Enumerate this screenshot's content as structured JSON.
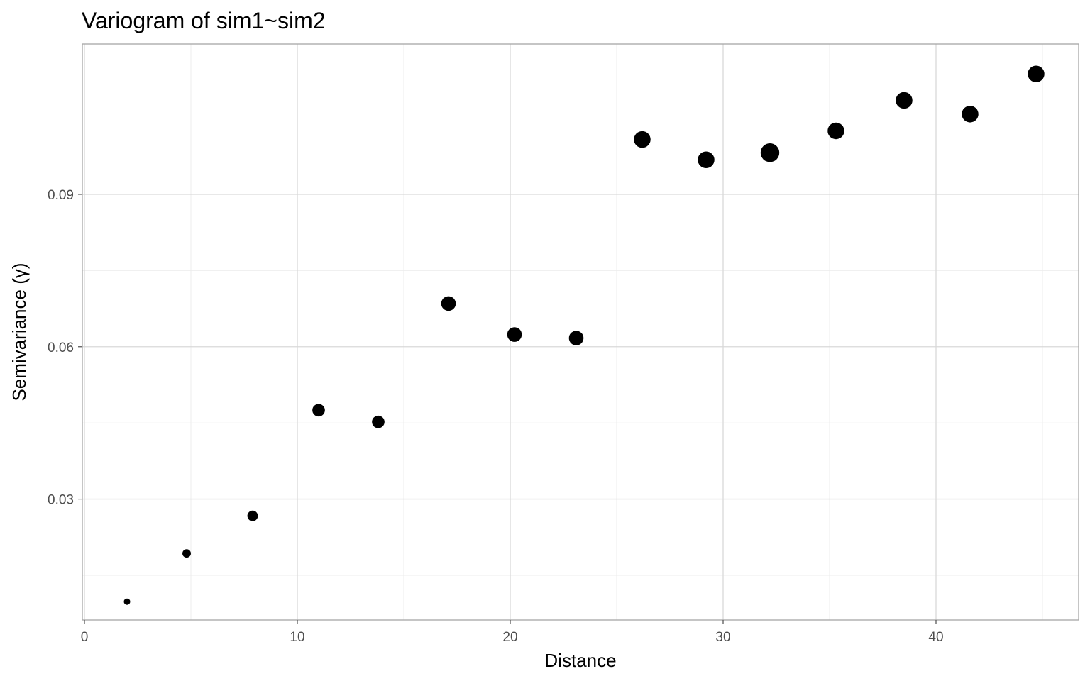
{
  "chart_data": {
    "type": "scatter",
    "title": "Variogram of sim1~sim2",
    "xlabel": "Distance",
    "ylabel": "Semivariance (γ)",
    "xlim": [
      -0.1,
      46.7
    ],
    "ylim": [
      0.0062,
      0.1196
    ],
    "x_ticks": [
      0,
      10,
      20,
      30,
      40
    ],
    "x_tick_labels": [
      "0",
      "10",
      "20",
      "30",
      "40"
    ],
    "y_ticks": [
      0.03,
      0.06,
      0.09
    ],
    "y_tick_labels": [
      "0.03",
      "0.06",
      "0.09"
    ],
    "grid": true,
    "legend": "none",
    "points": [
      {
        "x": 2.0,
        "y": 0.0098,
        "size": 1
      },
      {
        "x": 4.8,
        "y": 0.0193,
        "size": 2
      },
      {
        "x": 7.9,
        "y": 0.0267,
        "size": 3
      },
      {
        "x": 11.0,
        "y": 0.0475,
        "size": 4
      },
      {
        "x": 13.8,
        "y": 0.0452,
        "size": 4
      },
      {
        "x": 17.1,
        "y": 0.0685,
        "size": 5
      },
      {
        "x": 20.2,
        "y": 0.0624,
        "size": 5
      },
      {
        "x": 23.1,
        "y": 0.0617,
        "size": 5
      },
      {
        "x": 26.2,
        "y": 0.1008,
        "size": 6
      },
      {
        "x": 29.2,
        "y": 0.0968,
        "size": 6
      },
      {
        "x": 32.2,
        "y": 0.0982,
        "size": 7
      },
      {
        "x": 35.3,
        "y": 0.1025,
        "size": 6
      },
      {
        "x": 38.5,
        "y": 0.1085,
        "size": 6
      },
      {
        "x": 41.6,
        "y": 0.1058,
        "size": 6
      },
      {
        "x": 44.7,
        "y": 0.1137,
        "size": 6
      }
    ]
  }
}
